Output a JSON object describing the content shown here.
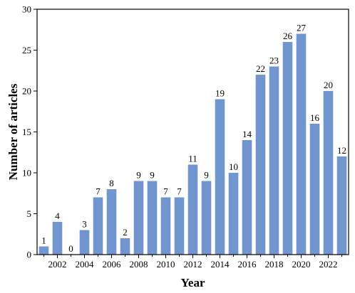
{
  "chart_data": {
    "type": "bar",
    "xlabel": "Year",
    "ylabel": "Number of articles",
    "ylim": [
      0,
      30
    ],
    "yticks": [
      0,
      5,
      10,
      15,
      20,
      25,
      30
    ],
    "categories": [
      "2001",
      "2002",
      "2003",
      "2004",
      "2005",
      "2006",
      "2007",
      "2008",
      "2009",
      "2010",
      "2011",
      "2012",
      "2013",
      "2014",
      "2015",
      "2016",
      "2017",
      "2018",
      "2019",
      "2020",
      "2021",
      "2022",
      "2023"
    ],
    "xtick_labels_shown": [
      "2002",
      "2004",
      "2006",
      "2008",
      "2010",
      "2012",
      "2014",
      "2016",
      "2018",
      "2020",
      "2022"
    ],
    "values": [
      1,
      4,
      0,
      3,
      7,
      8,
      2,
      9,
      9,
      7,
      7,
      11,
      9,
      19,
      10,
      14,
      22,
      23,
      26,
      27,
      16,
      20,
      12
    ],
    "bar_color": "#7195cf",
    "grid": false
  }
}
